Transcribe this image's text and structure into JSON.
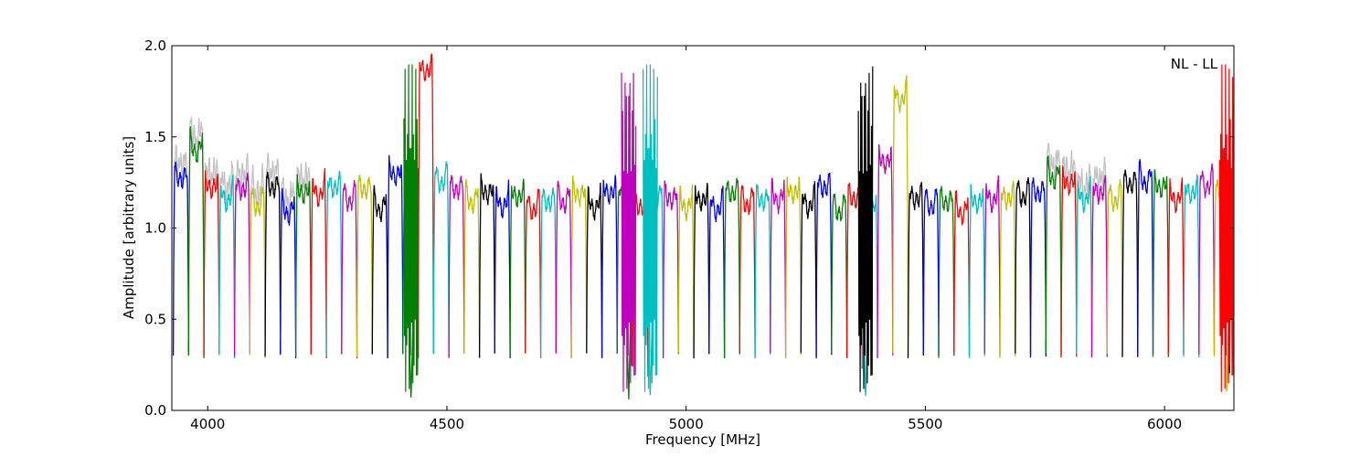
{
  "chart_data": {
    "type": "line",
    "title": "",
    "xlabel": "Frequency [MHz]",
    "ylabel": "Amplitude [arbitrary units]",
    "xlim": [
      3925,
      6145
    ],
    "ylim": [
      0,
      2.0
    ],
    "x_ticks": [
      4000,
      4500,
      5000,
      5500,
      6000
    ],
    "y_ticks": [
      0.0,
      0.5,
      1.0,
      1.5,
      2.0
    ],
    "y_tick_labels": [
      "0.0",
      "0.5",
      "1.0",
      "1.5",
      "2.0"
    ],
    "annotation": "NL - LL",
    "annotation_position": "top-right",
    "grid": false,
    "channel_width_mhz": 32,
    "channel_start_mhz": 3928,
    "color_cycle": [
      "#0000ff",
      "#008000",
      "#ff0000",
      "#00bfbf",
      "#bf00bf",
      "#bfbf00",
      "#000000"
    ],
    "background_trace_color": "#c0c0c0",
    "channel_peaks": [
      1.33,
      1.52,
      1.28,
      1.25,
      1.27,
      1.22,
      1.28,
      1.18,
      1.25,
      1.28,
      1.28,
      1.25,
      1.27,
      1.2,
      1.35,
      1.21,
      1.92,
      1.35,
      1.27,
      1.24,
      1.25,
      1.22,
      1.23,
      1.2,
      1.2,
      1.24,
      1.24,
      1.21,
      1.25,
      1.25,
      1.18,
      1.25,
      1.22,
      1.21,
      1.21,
      1.2,
      1.25,
      1.23,
      1.21,
      1.25,
      1.25,
      1.22,
      1.28,
      1.19,
      1.22,
      1.18,
      1.42,
      1.8,
      1.22,
      1.22,
      1.2,
      1.18,
      1.2,
      1.25,
      1.22,
      1.27,
      1.25,
      1.37,
      1.3,
      1.25,
      1.25,
      1.25,
      1.3,
      1.35,
      1.28,
      1.25,
      1.25,
      1.33,
      1.25,
      1.28,
      1.25,
      1.25
    ],
    "dips": [
      {
        "center_mhz": 4425,
        "min": 0.05,
        "color": "#008000"
      },
      {
        "center_mhz": 4880,
        "min": 0.06,
        "color": "#bf00bf"
      },
      {
        "center_mhz": 4925,
        "min": 0.06,
        "color": "#00bfbf"
      },
      {
        "center_mhz": 5375,
        "min": 0.06,
        "color": "#000000"
      },
      {
        "center_mhz": 6130,
        "min": 0.06,
        "color": "#ff0000"
      }
    ]
  }
}
